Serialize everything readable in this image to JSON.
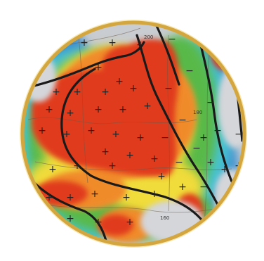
{
  "map": {
    "frame_color": "#d4a640",
    "palette": {
      "background_gray": "#c9ccd0",
      "blue": "#3f8fd0",
      "cyan": "#47c3d2",
      "green": "#58b94a",
      "yellow": "#f0dc3a",
      "orange": "#f08b2c",
      "red": "#e03a1f",
      "dark_red": "#c8281a",
      "contour_black": "#1a1a1a",
      "marker": "#222222"
    },
    "plus_symbol": "+",
    "minus_symbol": "−",
    "labels": {
      "sample_a": "200",
      "sample_b": "180",
      "sample_c": "160"
    }
  }
}
